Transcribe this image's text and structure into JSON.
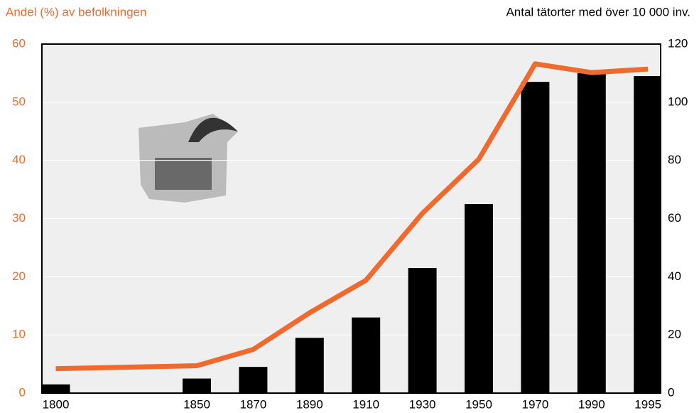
{
  "chart_data": {
    "type": "bar_line",
    "y_axis_label": "Andel (%) av befolkningen",
    "y2_axis_label": "Antal tätorter med över 10 000 inv.",
    "categories": [
      "1800",
      "1850",
      "1870",
      "1890",
      "1910",
      "1930",
      "1950",
      "1970",
      "1990",
      "1995"
    ],
    "series": [
      {
        "name": "Antal tätorter",
        "type": "bar",
        "axis": "y2",
        "color": "#000000",
        "values": [
          3,
          5,
          9,
          19,
          26,
          43,
          65,
          107,
          110,
          109
        ]
      },
      {
        "name": "Andel",
        "type": "line",
        "axis": "y",
        "color": "#ee6a2e",
        "values": [
          4.2,
          4.7,
          7.5,
          13.8,
          19.4,
          30.9,
          40.2,
          56.6,
          55.1,
          55.7
        ]
      }
    ],
    "ylim": [
      0,
      60
    ],
    "yticks": [
      0,
      10,
      20,
      30,
      40,
      50,
      60
    ],
    "y2lim": [
      0,
      120
    ],
    "y2ticks": [
      0,
      20,
      40,
      60,
      80,
      100,
      120
    ],
    "grid": true
  }
}
